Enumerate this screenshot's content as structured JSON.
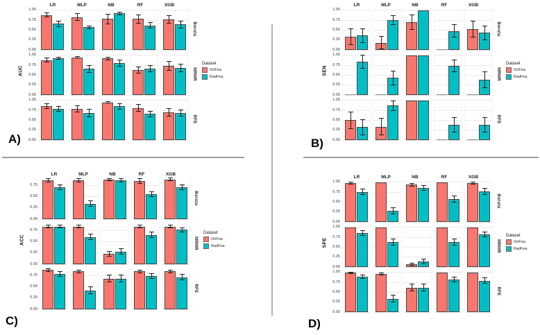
{
  "panel_labels": {
    "A": "A)",
    "B": "B)",
    "C": "C)",
    "D": "D)"
  },
  "legend": {
    "title": "Dataset",
    "entries": [
      {
        "label": "OriFea",
        "color": "#F8766D"
      },
      {
        "label": "RadFea",
        "color": "#00BFC4"
      }
    ]
  },
  "chart_data": [
    {
      "type": "bar",
      "panel": "A",
      "ylabel": "AUC",
      "facet_cols": [
        "LR",
        "MLP",
        "NB",
        "RF",
        "XGB"
      ],
      "facet_rows": [
        "Boruta",
        "MRMR",
        "RFE"
      ],
      "yticks": [
        1.0,
        0.75,
        0.5,
        0.25,
        0.0
      ],
      "ylim": [
        0,
        1.05
      ],
      "legend_title": "Dataset",
      "legend_position": "right",
      "grid": true,
      "series": [
        {
          "name": "OriFea",
          "color": "#F8766D",
          "values": [
            [
              0.88,
              0.83,
              0.78,
              0.78,
              0.77
            ],
            [
              0.88,
              0.95,
              0.92,
              0.63,
              0.73
            ],
            [
              0.86,
              0.79,
              0.95,
              0.81,
              0.7
            ]
          ],
          "errors": [
            [
              0.06,
              0.1,
              0.13,
              0.12,
              0.11
            ],
            [
              0.06,
              0.03,
              0.05,
              0.09,
              0.12
            ],
            [
              0.07,
              0.09,
              0.03,
              0.1,
              0.11
            ]
          ]
        },
        {
          "name": "RadFea",
          "color": "#00BFC4",
          "values": [
            [
              0.66,
              0.57,
              0.92,
              0.62,
              0.64
            ],
            [
              0.93,
              0.66,
              0.8,
              0.67,
              0.68
            ],
            [
              0.78,
              0.68,
              0.85,
              0.66,
              0.68
            ]
          ],
          "errors": [
            [
              0.08,
              0.05,
              0.04,
              0.08,
              0.09
            ],
            [
              0.04,
              0.1,
              0.09,
              0.09,
              0.1
            ],
            [
              0.07,
              0.1,
              0.08,
              0.08,
              0.09
            ]
          ]
        }
      ]
    },
    {
      "type": "bar",
      "panel": "B",
      "ylabel": "SEN",
      "facet_cols": [
        "LR",
        "MLP",
        "NB",
        "RF",
        "XGB"
      ],
      "facet_rows": [
        "Boruta",
        "MRMR",
        "RFE"
      ],
      "yticks": [
        1.0,
        0.75,
        0.5,
        0.25,
        0.0
      ],
      "ylim": [
        0,
        1.05
      ],
      "legend_title": "Dataset",
      "legend_position": "right",
      "grid": true,
      "series": [
        {
          "name": "OriFea",
          "color": "#F8766D",
          "values": [
            [
              0.34,
              0.18,
              0.7,
              0.0,
              0.53
            ],
            [
              0.0,
              0.0,
              1.0,
              0.0,
              0.0
            ],
            [
              0.5,
              0.34,
              1.0,
              0.0,
              0.0
            ]
          ],
          "errors": [
            [
              0.21,
              0.17,
              0.19,
              0.0,
              0.21
            ],
            [
              0.0,
              0.0,
              0.0,
              0.0,
              0.0
            ],
            [
              0.22,
              0.22,
              0.0,
              0.0,
              0.0
            ]
          ]
        },
        {
          "name": "RadFea",
          "color": "#00BFC4",
          "values": [
            [
              0.36,
              0.75,
              1.0,
              0.48,
              0.43
            ],
            [
              0.84,
              0.43,
              1.0,
              0.74,
              0.38
            ],
            [
              0.33,
              0.87,
              1.0,
              0.38,
              0.38
            ]
          ],
          "errors": [
            [
              0.19,
              0.12,
              0.0,
              0.17,
              0.18
            ],
            [
              0.17,
              0.19,
              0.0,
              0.16,
              0.21
            ],
            [
              0.2,
              0.13,
              0.0,
              0.19,
              0.19
            ]
          ]
        }
      ]
    },
    {
      "type": "bar",
      "panel": "C",
      "ylabel": "ACC",
      "facet_cols": [
        "LR",
        "MLP",
        "NB",
        "RF",
        "XGB"
      ],
      "facet_rows": [
        "Boruta",
        "MRMR",
        "RFE"
      ],
      "yticks": [
        0.75,
        0.5,
        0.25,
        0.0
      ],
      "ylim": [
        0,
        0.92
      ],
      "legend_title": "Dataset",
      "legend_position": "right",
      "grid": true,
      "series": [
        {
          "name": "OriFea",
          "color": "#F8766D",
          "values": [
            [
              0.86,
              0.86,
              0.88,
              0.84,
              0.88
            ],
            [
              0.83,
              0.83,
              0.23,
              0.83,
              0.83
            ],
            [
              0.87,
              0.84,
              0.68,
              0.84,
              0.84
            ]
          ],
          "errors": [
            [
              0.04,
              0.04,
              0.03,
              0.06,
              0.04
            ],
            [
              0.04,
              0.04,
              0.06,
              0.04,
              0.04
            ],
            [
              0.04,
              0.04,
              0.08,
              0.04,
              0.04
            ]
          ]
        },
        {
          "name": "RadFea",
          "color": "#00BFC4",
          "values": [
            [
              0.7,
              0.34,
              0.86,
              0.55,
              0.7
            ],
            [
              0.83,
              0.6,
              0.28,
              0.65,
              0.76
            ],
            [
              0.78,
              0.42,
              0.68,
              0.74,
              0.71
            ]
          ],
          "errors": [
            [
              0.06,
              0.07,
              0.05,
              0.06,
              0.06
            ],
            [
              0.04,
              0.07,
              0.07,
              0.07,
              0.06
            ],
            [
              0.06,
              0.08,
              0.08,
              0.06,
              0.07
            ]
          ]
        }
      ]
    },
    {
      "type": "bar",
      "panel": "D",
      "ylabel": "SPE",
      "facet_cols": [
        "LR",
        "MLP",
        "NB",
        "RF",
        "XGB"
      ],
      "facet_rows": [
        "Boruta",
        "MRMR",
        "RFE"
      ],
      "yticks": [
        1.0,
        0.75,
        0.5,
        0.25,
        0.0
      ],
      "ylim": [
        0,
        1.05
      ],
      "legend_title": "Dataset",
      "legend_position": "right",
      "grid": true,
      "series": [
        {
          "name": "OriFea",
          "color": "#F8766D",
          "values": [
            [
              0.98,
              1.0,
              0.94,
              1.0,
              0.98
            ],
            [
              1.0,
              1.0,
              0.07,
              1.0,
              1.0
            ],
            [
              0.99,
              0.96,
              0.62,
              1.0,
              1.0
            ]
          ],
          "errors": [
            [
              0.03,
              0.0,
              0.04,
              0.0,
              0.03
            ],
            [
              0.0,
              0.0,
              0.04,
              0.0,
              0.0
            ],
            [
              0.02,
              0.04,
              0.1,
              0.0,
              0.0
            ]
          ]
        },
        {
          "name": "RadFea",
          "color": "#00BFC4",
          "values": [
            [
              0.76,
              0.28,
              0.86,
              0.58,
              0.77
            ],
            [
              0.85,
              0.63,
              0.14,
              0.63,
              0.82
            ],
            [
              0.89,
              0.34,
              0.62,
              0.82,
              0.79
            ]
          ],
          "errors": [
            [
              0.08,
              0.09,
              0.07,
              0.09,
              0.08
            ],
            [
              0.07,
              0.09,
              0.07,
              0.09,
              0.07
            ],
            [
              0.05,
              0.09,
              0.1,
              0.07,
              0.08
            ]
          ]
        }
      ]
    }
  ]
}
